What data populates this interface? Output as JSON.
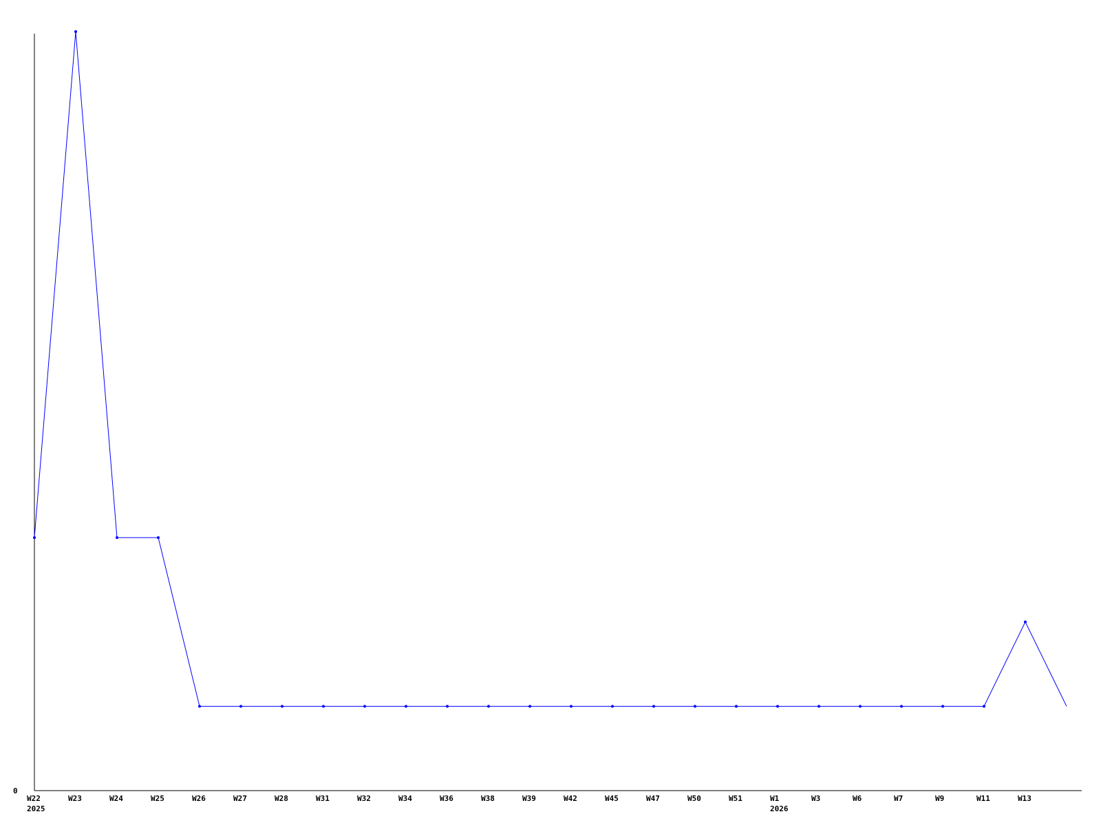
{
  "chart_data": {
    "type": "line",
    "title": "",
    "xlabel": "",
    "ylabel": "",
    "ylim": [
      0,
      9
    ],
    "y_tick_labels": [
      "0"
    ],
    "grid": false,
    "x": [
      "W22",
      "W23",
      "W24",
      "W25",
      "W26",
      "W27",
      "W28",
      "W31",
      "W32",
      "W34",
      "W36",
      "W38",
      "W39",
      "W42",
      "W45",
      "W47",
      "W50",
      "W51",
      "W1",
      "W3",
      "W6",
      "W7",
      "W9",
      "W11",
      "W13",
      ""
    ],
    "year_labels": [
      {
        "at": "W22",
        "label": "2025"
      },
      {
        "at": "W1",
        "label": "2026"
      }
    ],
    "series": [
      {
        "values": [
          3,
          9,
          3,
          3,
          1,
          1,
          1,
          1,
          1,
          1,
          1,
          1,
          1,
          1,
          1,
          1,
          1,
          1,
          1,
          1,
          1,
          1,
          1,
          1,
          2,
          1
        ],
        "color": "#0000ff"
      }
    ],
    "axis_color": "#000000"
  }
}
